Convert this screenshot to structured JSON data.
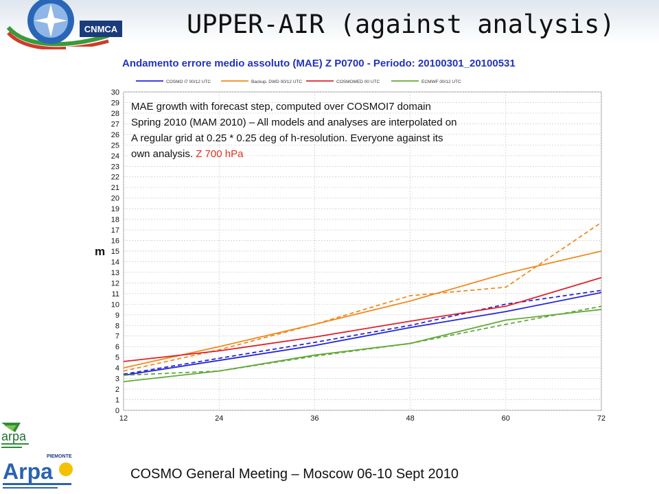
{
  "slide": {
    "title": "UPPER-AIR (against analysis)",
    "footer": "COSMO General Meeting – Moscow 06-10 Sept 2010",
    "logo_meteo_text": "CNMCA",
    "logo_arpa_er_text": "arpa",
    "logo_arpa_p_text": "Arpa"
  },
  "note": {
    "line1": "MAE growth with forecast step, computed over COSMOI7 domain",
    "line2": "Spring 2010 (MAM 2010) – All models and analyses are interpolated on",
    "line3": "A regular grid at 0.25 * 0.25 deg of h-resolution. Everyone against its",
    "line4": "own analysis. ",
    "highlight": "Z 700 hPa"
  },
  "colors": {
    "cosmo_i7": "#2424d8",
    "dwd": "#f08a1c",
    "cosmo_med": "#e0202a",
    "ecmwf": "#62a838",
    "note_highlight": "#e0301e",
    "chart_title": "#2233bb"
  },
  "chart_data": {
    "type": "line",
    "title": "Andamento errore medio assoluto (MAE) Z P0700 - Periodo: 20100301_20100531",
    "ylabel": "m",
    "xlabel": "",
    "x": [
      12,
      24,
      36,
      48,
      60,
      72
    ],
    "xlim": [
      12,
      72
    ],
    "ylim": [
      0,
      30
    ],
    "y_ticks": [
      0,
      1,
      2,
      3,
      4,
      5,
      6,
      7,
      8,
      9,
      10,
      11,
      12,
      13,
      14,
      15,
      16,
      17,
      18,
      19,
      20,
      21,
      22,
      23,
      24,
      25,
      26,
      27,
      28,
      29,
      30
    ],
    "grid": true,
    "legend_position": "top",
    "legend": [
      {
        "name": "COSMO I7 00/12 UTC",
        "color": "#2424d8"
      },
      {
        "name": "Backup. DWD 00/12 UTC",
        "color": "#f08a1c"
      },
      {
        "name": "COSMOMED 00 UTC",
        "color": "#e0202a"
      },
      {
        "name": "ECMWF 00/12 UTC",
        "color": "#62a838"
      }
    ],
    "series": [
      {
        "color": "#2424d8",
        "dashed": false,
        "values": [
          3.3,
          4.7,
          6.1,
          7.8,
          9.3,
          11.1
        ]
      },
      {
        "color": "#2424d8",
        "dashed": true,
        "values": [
          3.4,
          4.9,
          6.4,
          8.0,
          10.0,
          11.3
        ]
      },
      {
        "color": "#f08a1c",
        "dashed": false,
        "values": [
          4.0,
          6.0,
          8.1,
          10.3,
          12.9,
          15.0
        ]
      },
      {
        "color": "#f08a1c",
        "dashed": true,
        "values": [
          3.7,
          5.7,
          8.1,
          10.8,
          11.6,
          17.7
        ]
      },
      {
        "color": "#e0202a",
        "dashed": false,
        "values": [
          4.6,
          5.6,
          6.9,
          8.4,
          9.8,
          12.5
        ]
      },
      {
        "color": "#62a838",
        "dashed": false,
        "values": [
          2.7,
          3.7,
          5.2,
          6.3,
          8.5,
          9.5
        ]
      },
      {
        "color": "#62a838",
        "dashed": true,
        "values": [
          3.3,
          3.7,
          5.1,
          6.3,
          8.1,
          9.8
        ]
      }
    ]
  }
}
